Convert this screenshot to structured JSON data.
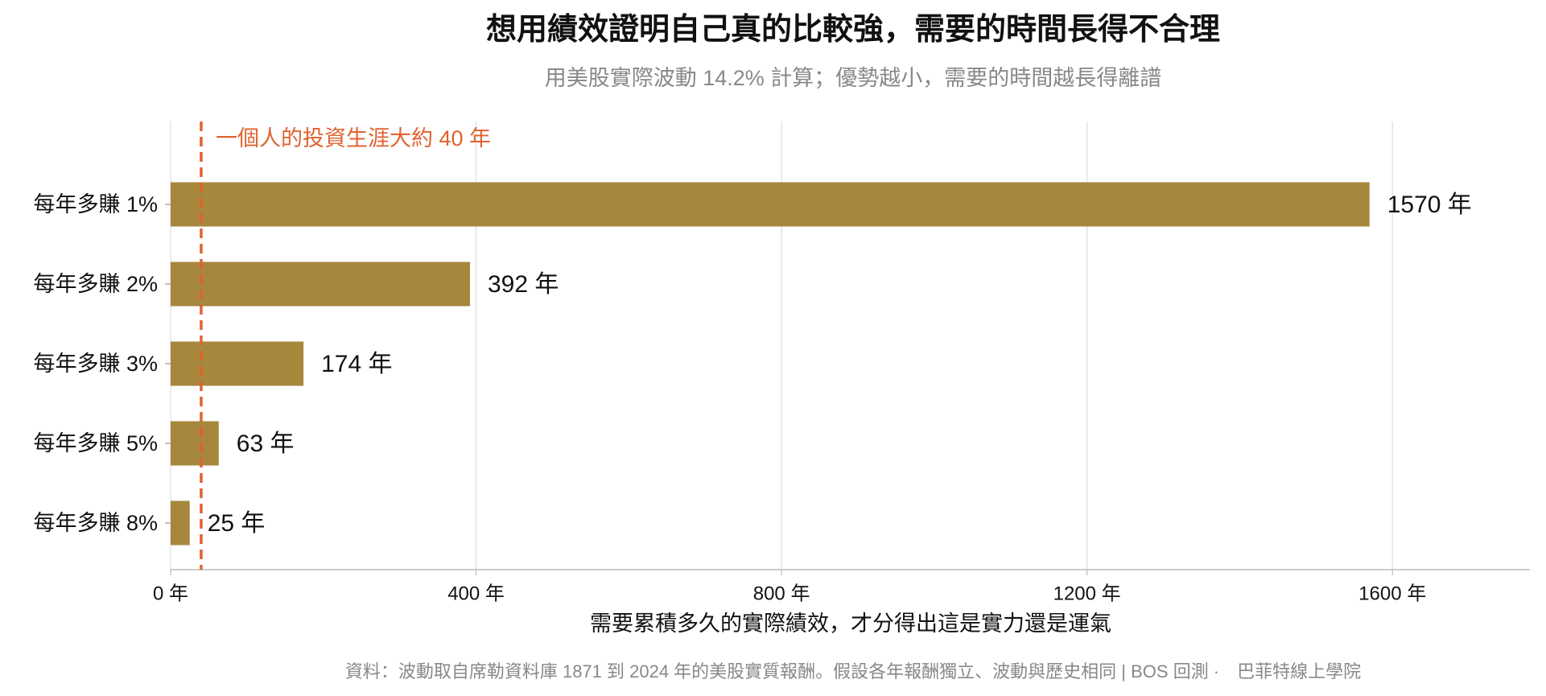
{
  "chart_data": {
    "type": "barh",
    "title": "想用績效證明自己真的比較強，需要的時間長得不合理",
    "subtitle": "用美股實際波動 14.2% 計算；優勢越小，需要的時間越長得離譜",
    "categories": [
      "每年多賺 1%",
      "每年多賺 2%",
      "每年多賺 3%",
      "每年多賺 5%",
      "每年多賺 8%"
    ],
    "values": [
      1570,
      392,
      174,
      63,
      25
    ],
    "value_labels": [
      "1570 年",
      "392 年",
      "174 年",
      "63 年",
      "25 年"
    ],
    "color": "#a6873c",
    "xlim": [
      0,
      1780
    ],
    "xticks": [
      {
        "value": 0,
        "label": "0 年"
      },
      {
        "value": 400,
        "label": "400 年"
      },
      {
        "value": 800,
        "label": "800 年"
      },
      {
        "value": 1200,
        "label": "1200 年"
      },
      {
        "value": 1600,
        "label": "1600 年"
      }
    ],
    "grid": true,
    "xlabel": "需要累積多久的實際績效，才分得出這是實力還是運氣",
    "reference_line": {
      "value": 40,
      "label": "一個人的投資生涯大約 40 年",
      "color": "#e0622f"
    },
    "source": "資料：波動取自席勒資料庫 1871 到 2024 年的美股實質報酬。假設各年報酬獨立、波動與歷史相同 | BOS 回測 ·　巴菲特線上學院"
  }
}
